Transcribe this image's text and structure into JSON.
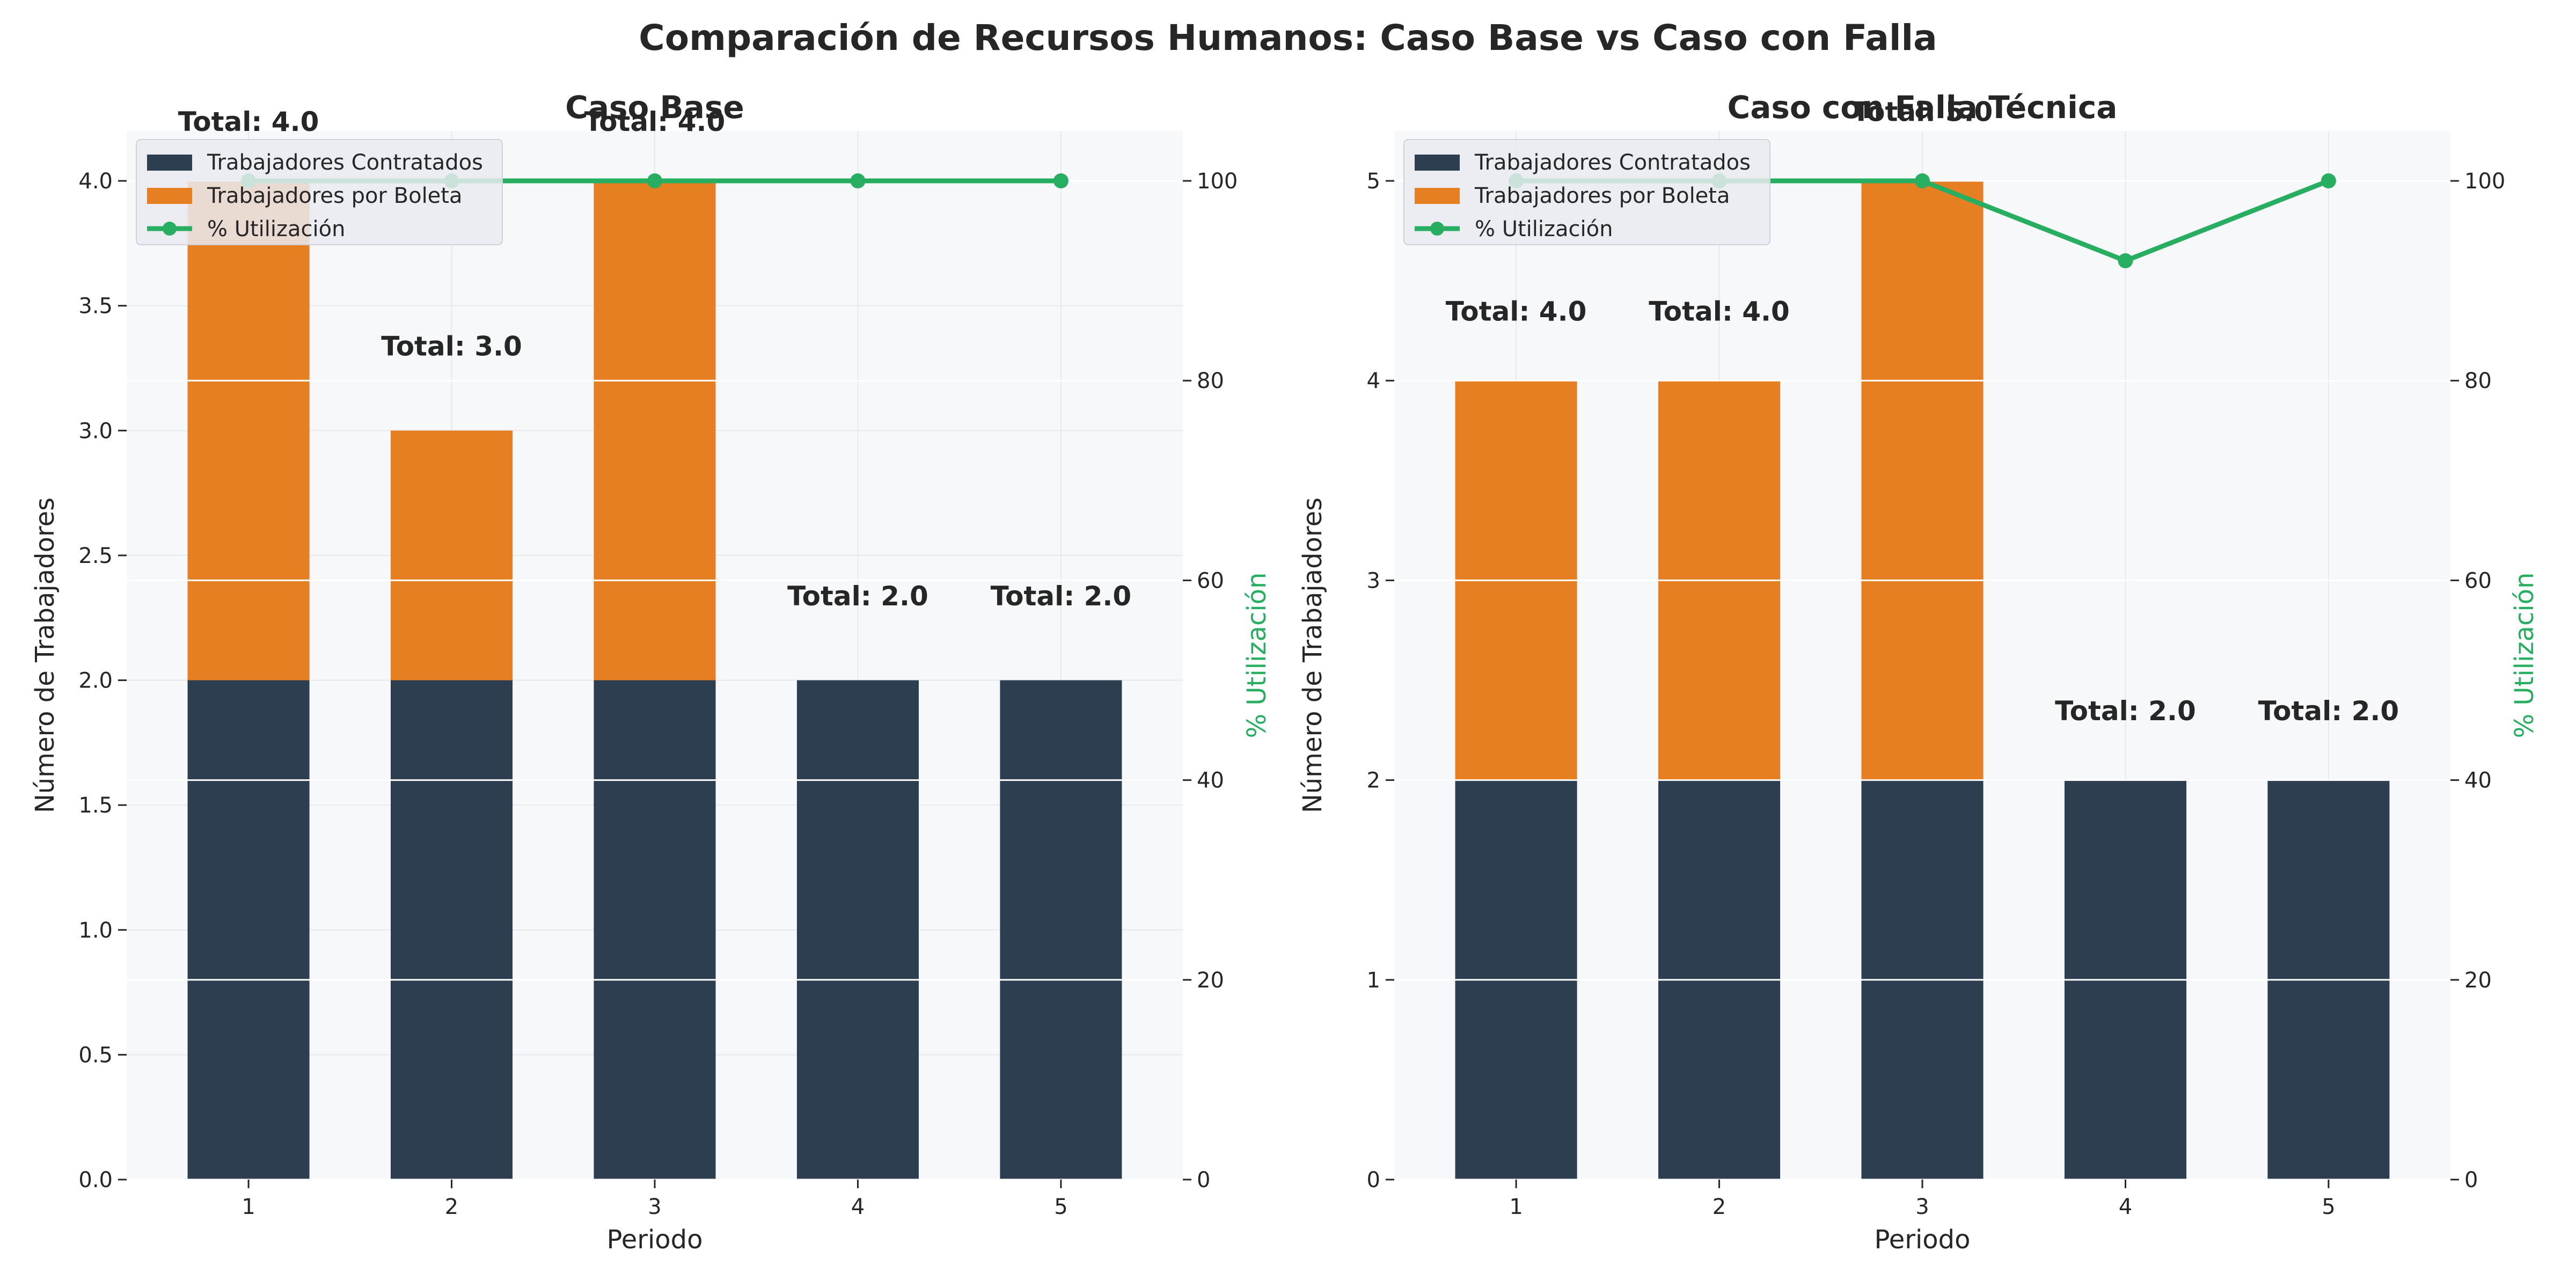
{
  "suptitle": "Comparación de Recursos Humanos: Caso Base vs Caso con Falla",
  "colors": {
    "contratados": "#2c3e50",
    "boleta": "#e67e22",
    "utilizacion": "#27ae60",
    "plot_bg": "#f7f8fa",
    "grid": "#e6e8ec",
    "text": "#262626",
    "legend_bg": "#e9ebf0"
  },
  "chart_data": [
    {
      "type": "bar",
      "title": "Caso Base",
      "xlabel": "Periodo",
      "ylabel": "Número de Trabajadores",
      "y2label": "% Utilización",
      "categories": [
        "1",
        "2",
        "3",
        "4",
        "5"
      ],
      "ylim": [
        0,
        4.2
      ],
      "yticks": [
        "0.0",
        "0.5",
        "1.0",
        "1.5",
        "2.0",
        "2.5",
        "3.0",
        "3.5",
        "4.0"
      ],
      "y2lim": [
        0,
        105
      ],
      "y2ticks": [
        "0",
        "20",
        "40",
        "60",
        "80",
        "100"
      ],
      "series": [
        {
          "name": "Trabajadores Contratados",
          "kind": "bar",
          "values": [
            2,
            2,
            2,
            2,
            2
          ]
        },
        {
          "name": "Trabajadores por Boleta",
          "kind": "bar",
          "values": [
            2,
            1,
            2,
            0,
            0
          ]
        },
        {
          "name": "% Utilización",
          "kind": "line",
          "axis": "right",
          "values": [
            100,
            100,
            100,
            100,
            100
          ]
        }
      ],
      "annotations": [
        {
          "category": "1",
          "y": 4.2,
          "text": "Total: 4.0"
        },
        {
          "category": "2",
          "y": 3.3,
          "text": "Total: 3.0"
        },
        {
          "category": "3",
          "y": 4.2,
          "text": "Total: 4.0"
        },
        {
          "category": "4",
          "y": 2.3,
          "text": "Total: 2.0"
        },
        {
          "category": "5",
          "y": 2.3,
          "text": "Total: 2.0"
        }
      ],
      "legend": "top-left",
      "grid": true
    },
    {
      "type": "bar",
      "title": "Caso con Falla Técnica",
      "xlabel": "Periodo",
      "ylabel": "Número de Trabajadores",
      "y2label": "% Utilización",
      "categories": [
        "1",
        "2",
        "3",
        "4",
        "5"
      ],
      "ylim": [
        0,
        5.25
      ],
      "yticks": [
        "0",
        "1",
        "2",
        "3",
        "4",
        "5"
      ],
      "y2lim": [
        0,
        105
      ],
      "y2ticks": [
        "0",
        "20",
        "40",
        "60",
        "80",
        "100"
      ],
      "series": [
        {
          "name": "Trabajadores Contratados",
          "kind": "bar",
          "values": [
            2,
            2,
            2,
            2,
            2
          ]
        },
        {
          "name": "Trabajadores por Boleta",
          "kind": "bar",
          "values": [
            2,
            2,
            3,
            0,
            0
          ]
        },
        {
          "name": "% Utilización",
          "kind": "line",
          "axis": "right",
          "values": [
            100,
            100,
            100,
            92,
            100
          ]
        }
      ],
      "annotations": [
        {
          "category": "1",
          "y": 4.3,
          "text": "Total: 4.0"
        },
        {
          "category": "2",
          "y": 4.3,
          "text": "Total: 4.0"
        },
        {
          "category": "3",
          "y": 5.3,
          "text": "Total: 5.0"
        },
        {
          "category": "4",
          "y": 2.3,
          "text": "Total: 2.0"
        },
        {
          "category": "5",
          "y": 2.3,
          "text": "Total: 2.0"
        }
      ],
      "legend": "top-left",
      "grid": true
    }
  ]
}
